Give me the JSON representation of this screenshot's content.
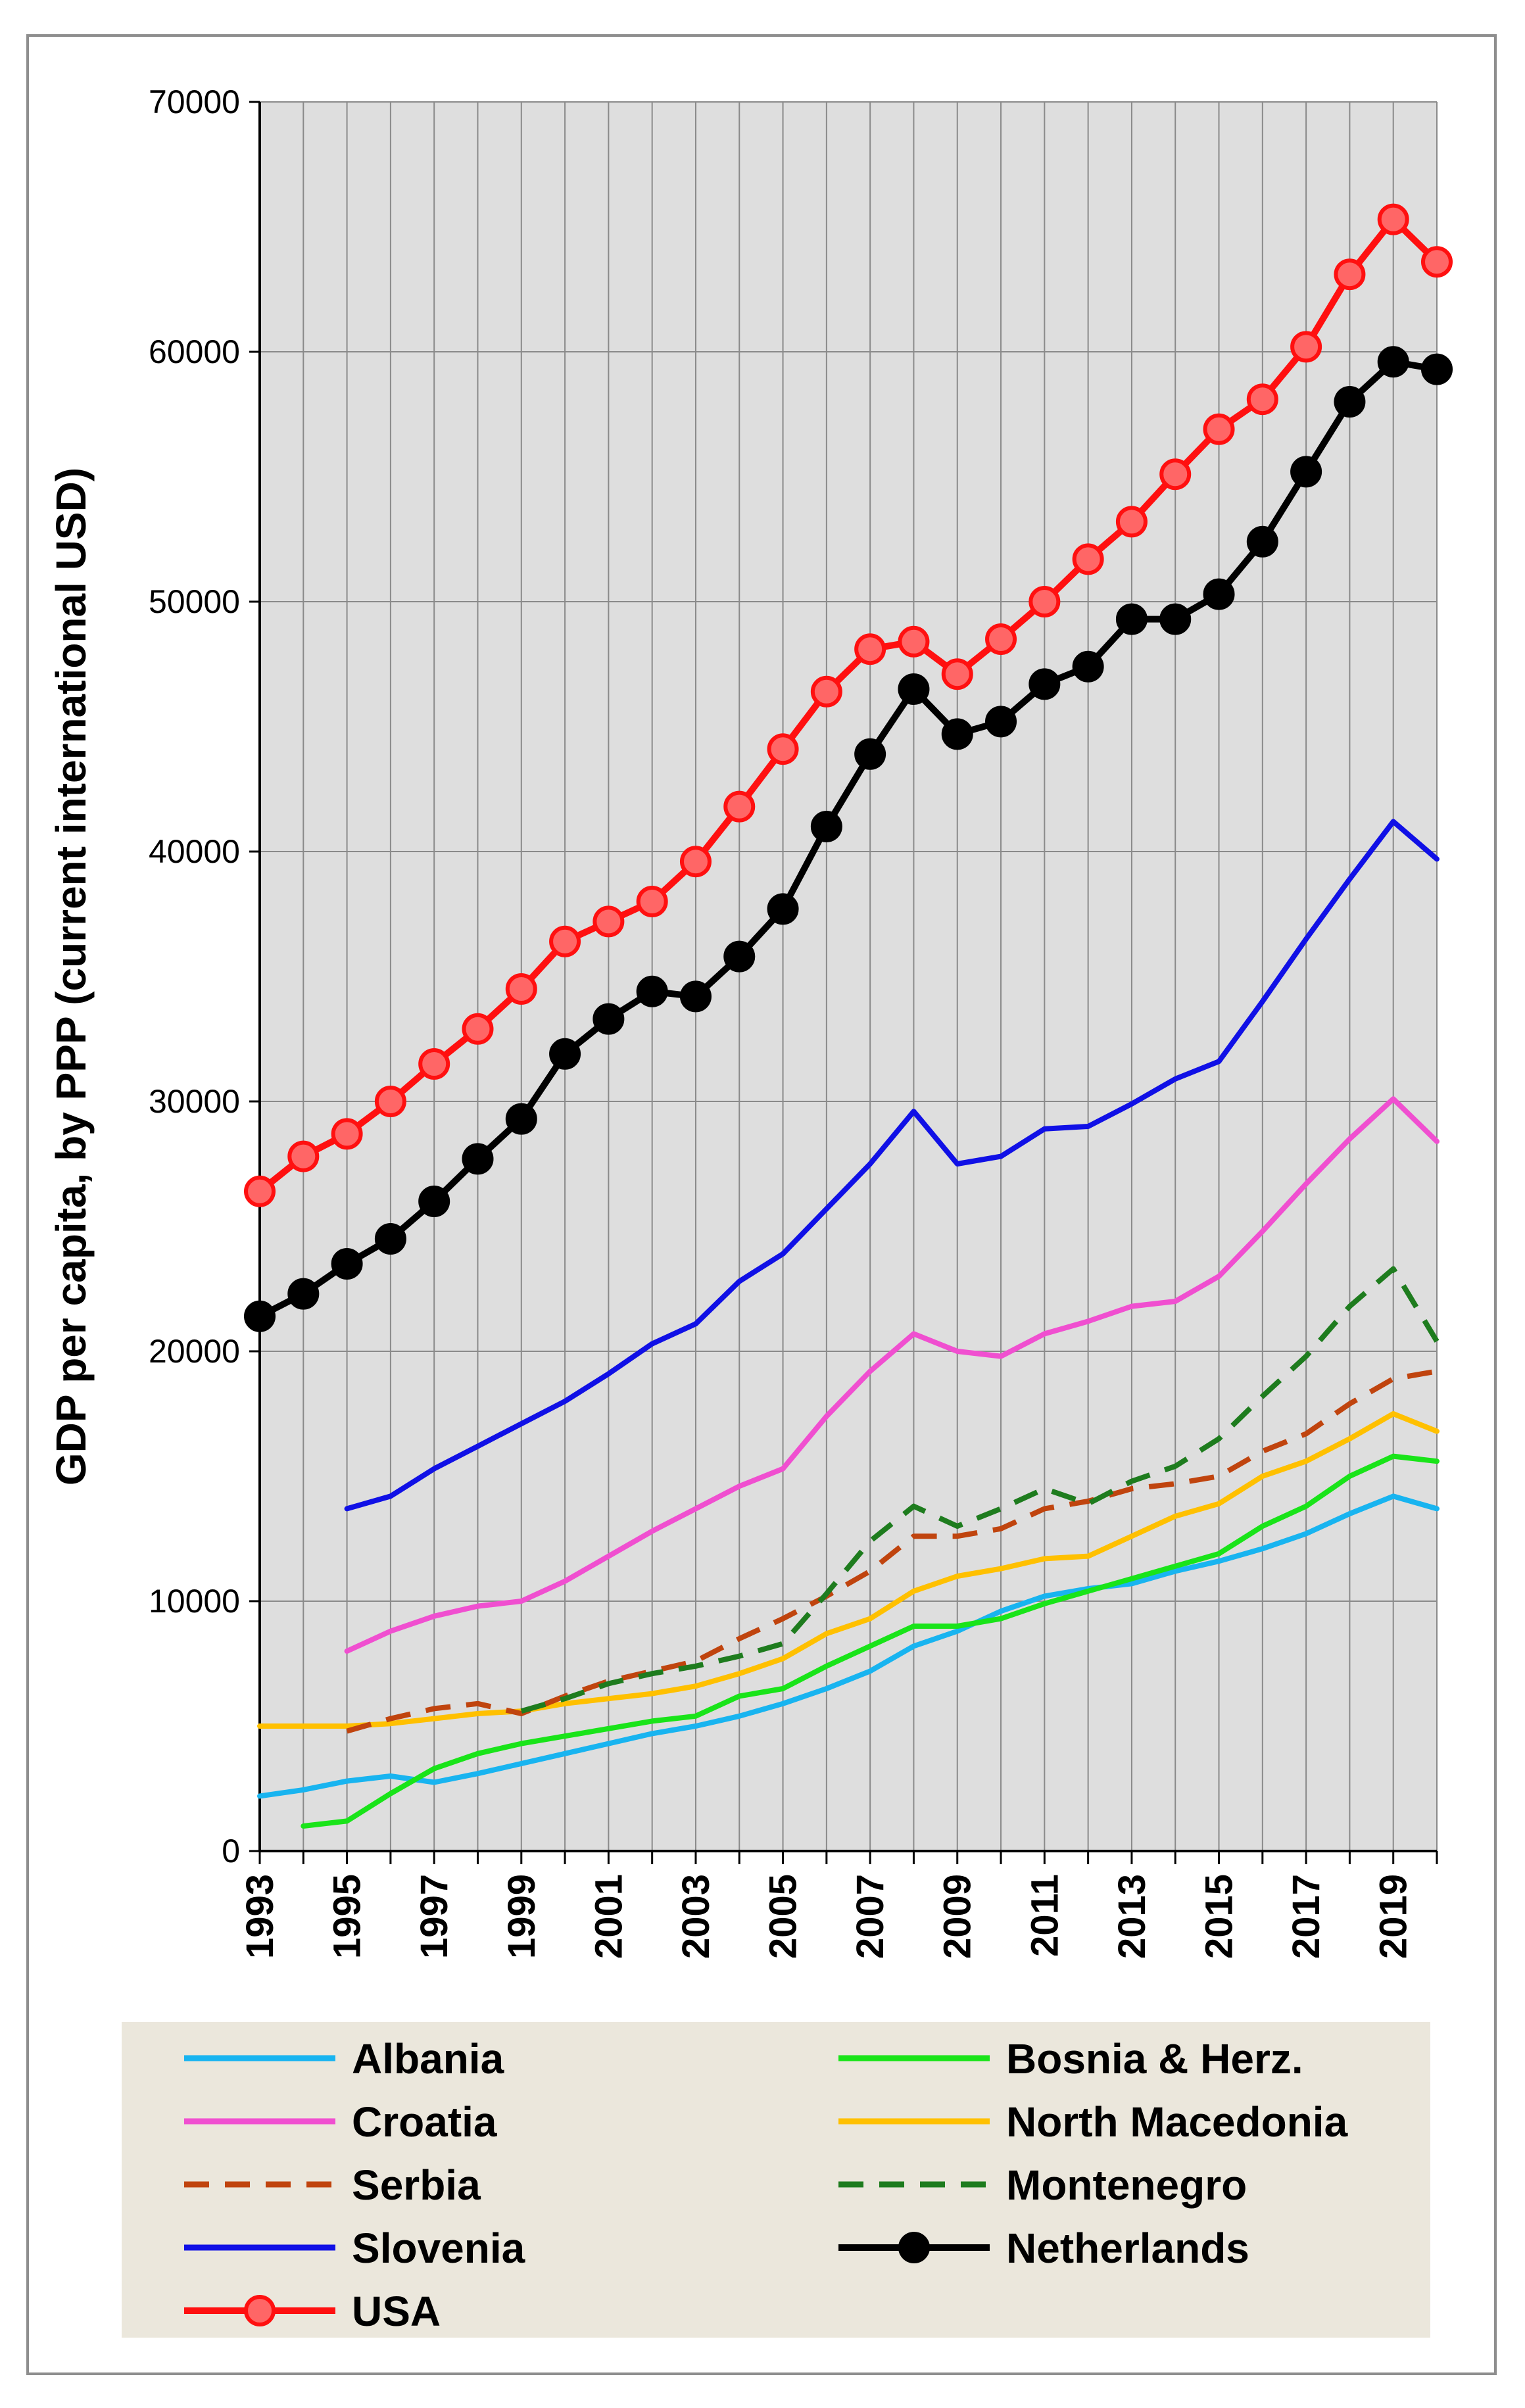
{
  "chart_data": {
    "type": "line",
    "title": "",
    "xlabel": "",
    "ylabel": "GDP per capita, by PPP (current international USD)",
    "xlim": [
      1993,
      2020
    ],
    "ylim": [
      0,
      70000
    ],
    "y_ticks": [
      0,
      10000,
      20000,
      30000,
      40000,
      50000,
      60000,
      70000
    ],
    "y_tick_labels": [
      "0",
      "10000",
      "20000",
      "30000",
      "40000",
      "50000",
      "60000",
      "70000"
    ],
    "x_ticks": [
      1993,
      1995,
      1997,
      1999,
      2001,
      2003,
      2005,
      2007,
      2009,
      2011,
      2013,
      2015,
      2017,
      2019
    ],
    "x_tick_labels": [
      "1993",
      "1995",
      "1997",
      "1999",
      "2001",
      "2003",
      "2005",
      "2007",
      "2009",
      "2011",
      "2013",
      "2015",
      "2017",
      "2019"
    ],
    "grid": true,
    "plot_background": "#dedede",
    "legend_background": "#ebe7dc",
    "legend_position": "bottom",
    "series": [
      {
        "name": "Albania",
        "color": "#18b4f0",
        "dash": "solid",
        "marker": false,
        "start": 1993,
        "values": [
          2200,
          2450,
          2800,
          3000,
          2750,
          3100,
          3500,
          3900,
          4300,
          4700,
          5000,
          5400,
          5900,
          6500,
          7200,
          8200,
          8800,
          9600,
          10200,
          10500,
          10700,
          11200,
          11600,
          12100,
          12700,
          13500,
          14200,
          13700
        ]
      },
      {
        "name": "Bosnia & Herz.",
        "color": "#19e419",
        "dash": "solid",
        "marker": false,
        "start": 1994,
        "values": [
          1000,
          1200,
          2300,
          3300,
          3900,
          4300,
          4600,
          4900,
          5200,
          5400,
          6200,
          6500,
          7400,
          8200,
          9000,
          9000,
          9300,
          9900,
          10400,
          10900,
          11400,
          11900,
          13000,
          13800,
          15000,
          15800,
          15600
        ]
      },
      {
        "name": "Croatia",
        "color": "#f04fd0",
        "dash": "solid",
        "marker": false,
        "start": 1995,
        "values": [
          8000,
          8800,
          9400,
          9800,
          10000,
          10800,
          11800,
          12800,
          13700,
          14600,
          15300,
          17400,
          19200,
          20700,
          20000,
          19800,
          20700,
          21200,
          21800,
          22000,
          23000,
          24800,
          26700,
          28500,
          30100,
          28400
        ]
      },
      {
        "name": "North Macedonia",
        "color": "#ffc000",
        "dash": "solid",
        "marker": false,
        "start": 1993,
        "values": [
          5000,
          5000,
          5000,
          5100,
          5300,
          5500,
          5600,
          5900,
          6100,
          6300,
          6600,
          7100,
          7700,
          8700,
          9300,
          10400,
          11000,
          11300,
          11700,
          11800,
          12600,
          13400,
          13900,
          15000,
          15600,
          16500,
          17500,
          16800
        ]
      },
      {
        "name": "Serbia",
        "color": "#c0440e",
        "dash": "dashed",
        "marker": false,
        "start": 1995,
        "values": [
          4800,
          5300,
          5700,
          5900,
          5500,
          6200,
          6800,
          7200,
          7600,
          8500,
          9300,
          10200,
          11200,
          12600,
          12600,
          12900,
          13700,
          14000,
          14500,
          14700,
          15000,
          16000,
          16700,
          17900,
          18900,
          19200
        ]
      },
      {
        "name": "Montenegro",
        "color": "#1e7c1e",
        "dash": "dashed",
        "marker": false,
        "start": 1999,
        "values": [
          5600,
          6100,
          6700,
          7100,
          7400,
          7800,
          8300,
          10300,
          12400,
          13800,
          13000,
          13700,
          14500,
          13900,
          14800,
          15400,
          16500,
          18200,
          19800,
          21800,
          23300,
          20400
        ]
      },
      {
        "name": "Slovenia",
        "color": "#1010e6",
        "dash": "solid",
        "marker": false,
        "start": 1995,
        "values": [
          13700,
          14200,
          15300,
          16200,
          17100,
          18000,
          19100,
          20300,
          21100,
          22800,
          23900,
          25700,
          27500,
          29600,
          27500,
          27800,
          28900,
          29000,
          29900,
          30900,
          31600,
          34000,
          36500,
          38900,
          41200,
          39700
        ]
      },
      {
        "name": "Netherlands",
        "color": "#000000",
        "dash": "solid",
        "marker": true,
        "marker_fill": "#000000",
        "start": 1993,
        "values": [
          21400,
          22300,
          23500,
          24500,
          26000,
          27700,
          29300,
          31900,
          33300,
          34400,
          34200,
          35800,
          37700,
          41000,
          43900,
          46500,
          44700,
          45200,
          46700,
          47400,
          49300,
          49300,
          50300,
          52400,
          55200,
          58000,
          59600,
          59300
        ]
      },
      {
        "name": "USA",
        "color": "#ff1010",
        "dash": "solid",
        "marker": true,
        "marker_fill": "#ff6666",
        "start": 1993,
        "values": [
          26400,
          27800,
          28700,
          30000,
          31500,
          32900,
          34500,
          36400,
          37200,
          38000,
          39600,
          41800,
          44100,
          46400,
          48100,
          48400,
          47100,
          48500,
          50000,
          51700,
          53200,
          55100,
          56900,
          58100,
          60200,
          63100,
          65300,
          63600
        ]
      }
    ]
  }
}
